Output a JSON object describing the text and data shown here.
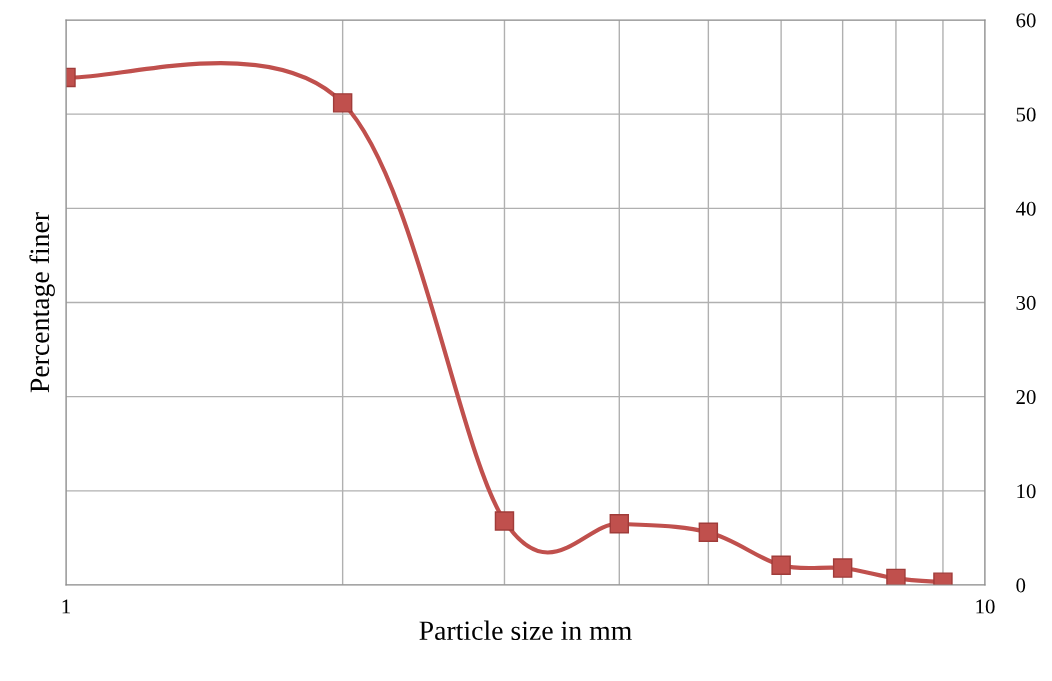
{
  "chart_data": {
    "type": "line",
    "xlabel": "Particle size in mm",
    "ylabel": "Percentage finer",
    "x": [
      1,
      2,
      3,
      4,
      5,
      6,
      7,
      8,
      9
    ],
    "series": [
      {
        "color": "#c0504d",
        "values": [
          53.9,
          51.2,
          6.8,
          6.5,
          5.6,
          2.1,
          1.8,
          0.7,
          0.3
        ]
      }
    ],
    "log": "x",
    "xlim": [
      1,
      10
    ],
    "xticks": [
      1,
      {
        "value": 2,
        "label": null
      },
      {
        "value": 3,
        "label": null
      },
      {
        "value": 4,
        "label": null
      },
      {
        "value": 5,
        "label": null
      },
      {
        "value": 6,
        "label": null
      },
      {
        "value": 7,
        "label": null
      },
      {
        "value": 8,
        "label": null
      },
      {
        "value": 9,
        "label": null
      },
      10
    ],
    "ylim": [
      0,
      60
    ],
    "yticks": [
      0,
      10,
      20,
      30,
      40,
      50,
      60
    ],
    "grid": true,
    "marker": "square",
    "line_style": "solid"
  }
}
